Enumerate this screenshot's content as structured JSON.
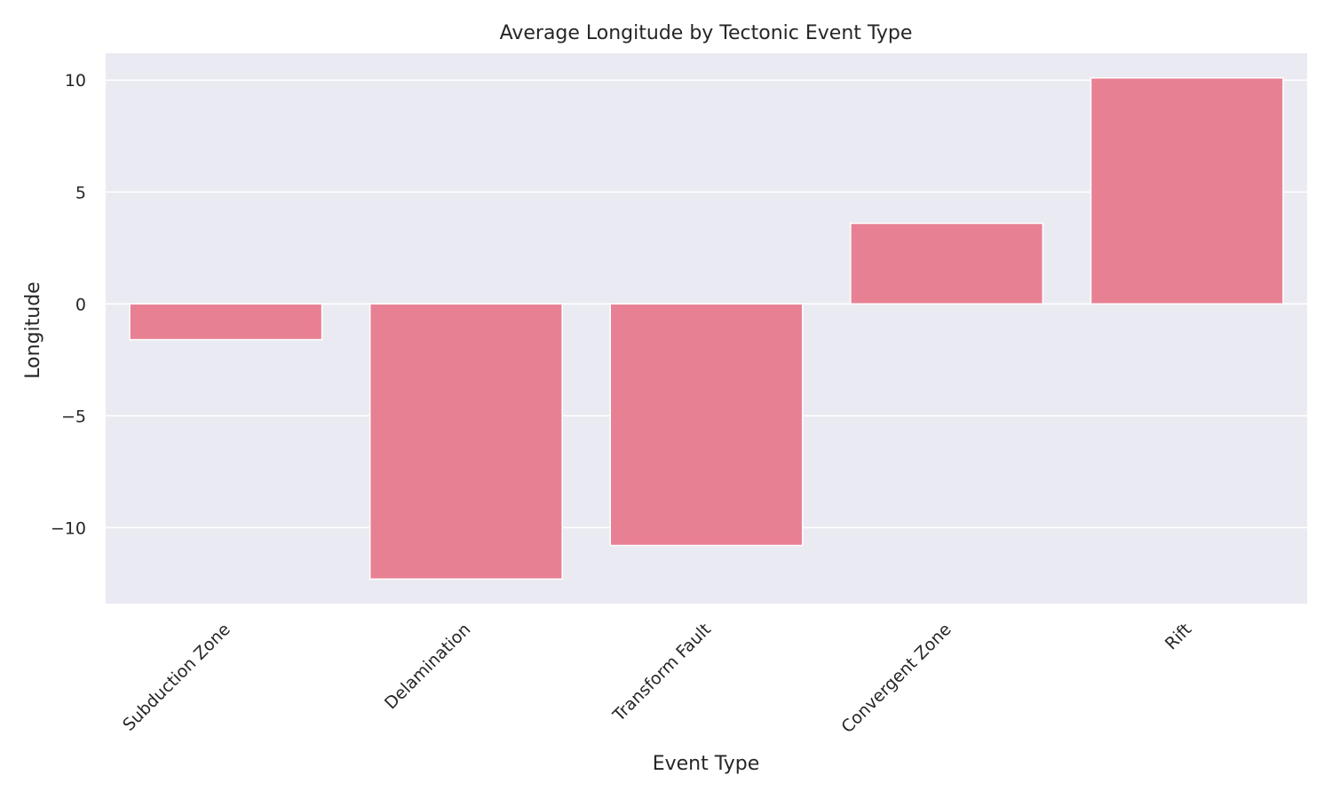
{
  "chart_data": {
    "type": "bar",
    "title": "Average Longitude by Tectonic Event Type",
    "xlabel": "Event Type",
    "ylabel": "Longitude",
    "categories": [
      "Subduction Zone",
      "Delamination",
      "Transform Fault",
      "Convergent Zone",
      "Rift"
    ],
    "values": [
      -1.6,
      -12.3,
      -10.8,
      3.6,
      10.1
    ],
    "ylim": [
      -13.4,
      11.2
    ],
    "yticks": [
      -10,
      -5,
      0,
      5,
      10
    ],
    "ytick_labels": [
      "−10",
      "−5",
      "0",
      "5",
      "10"
    ],
    "grid": true,
    "legend": "none",
    "colors": {
      "bar": "#e88093",
      "plot_background": "#eaeaf2",
      "grid": "#ffffff",
      "text": "#262626"
    }
  }
}
